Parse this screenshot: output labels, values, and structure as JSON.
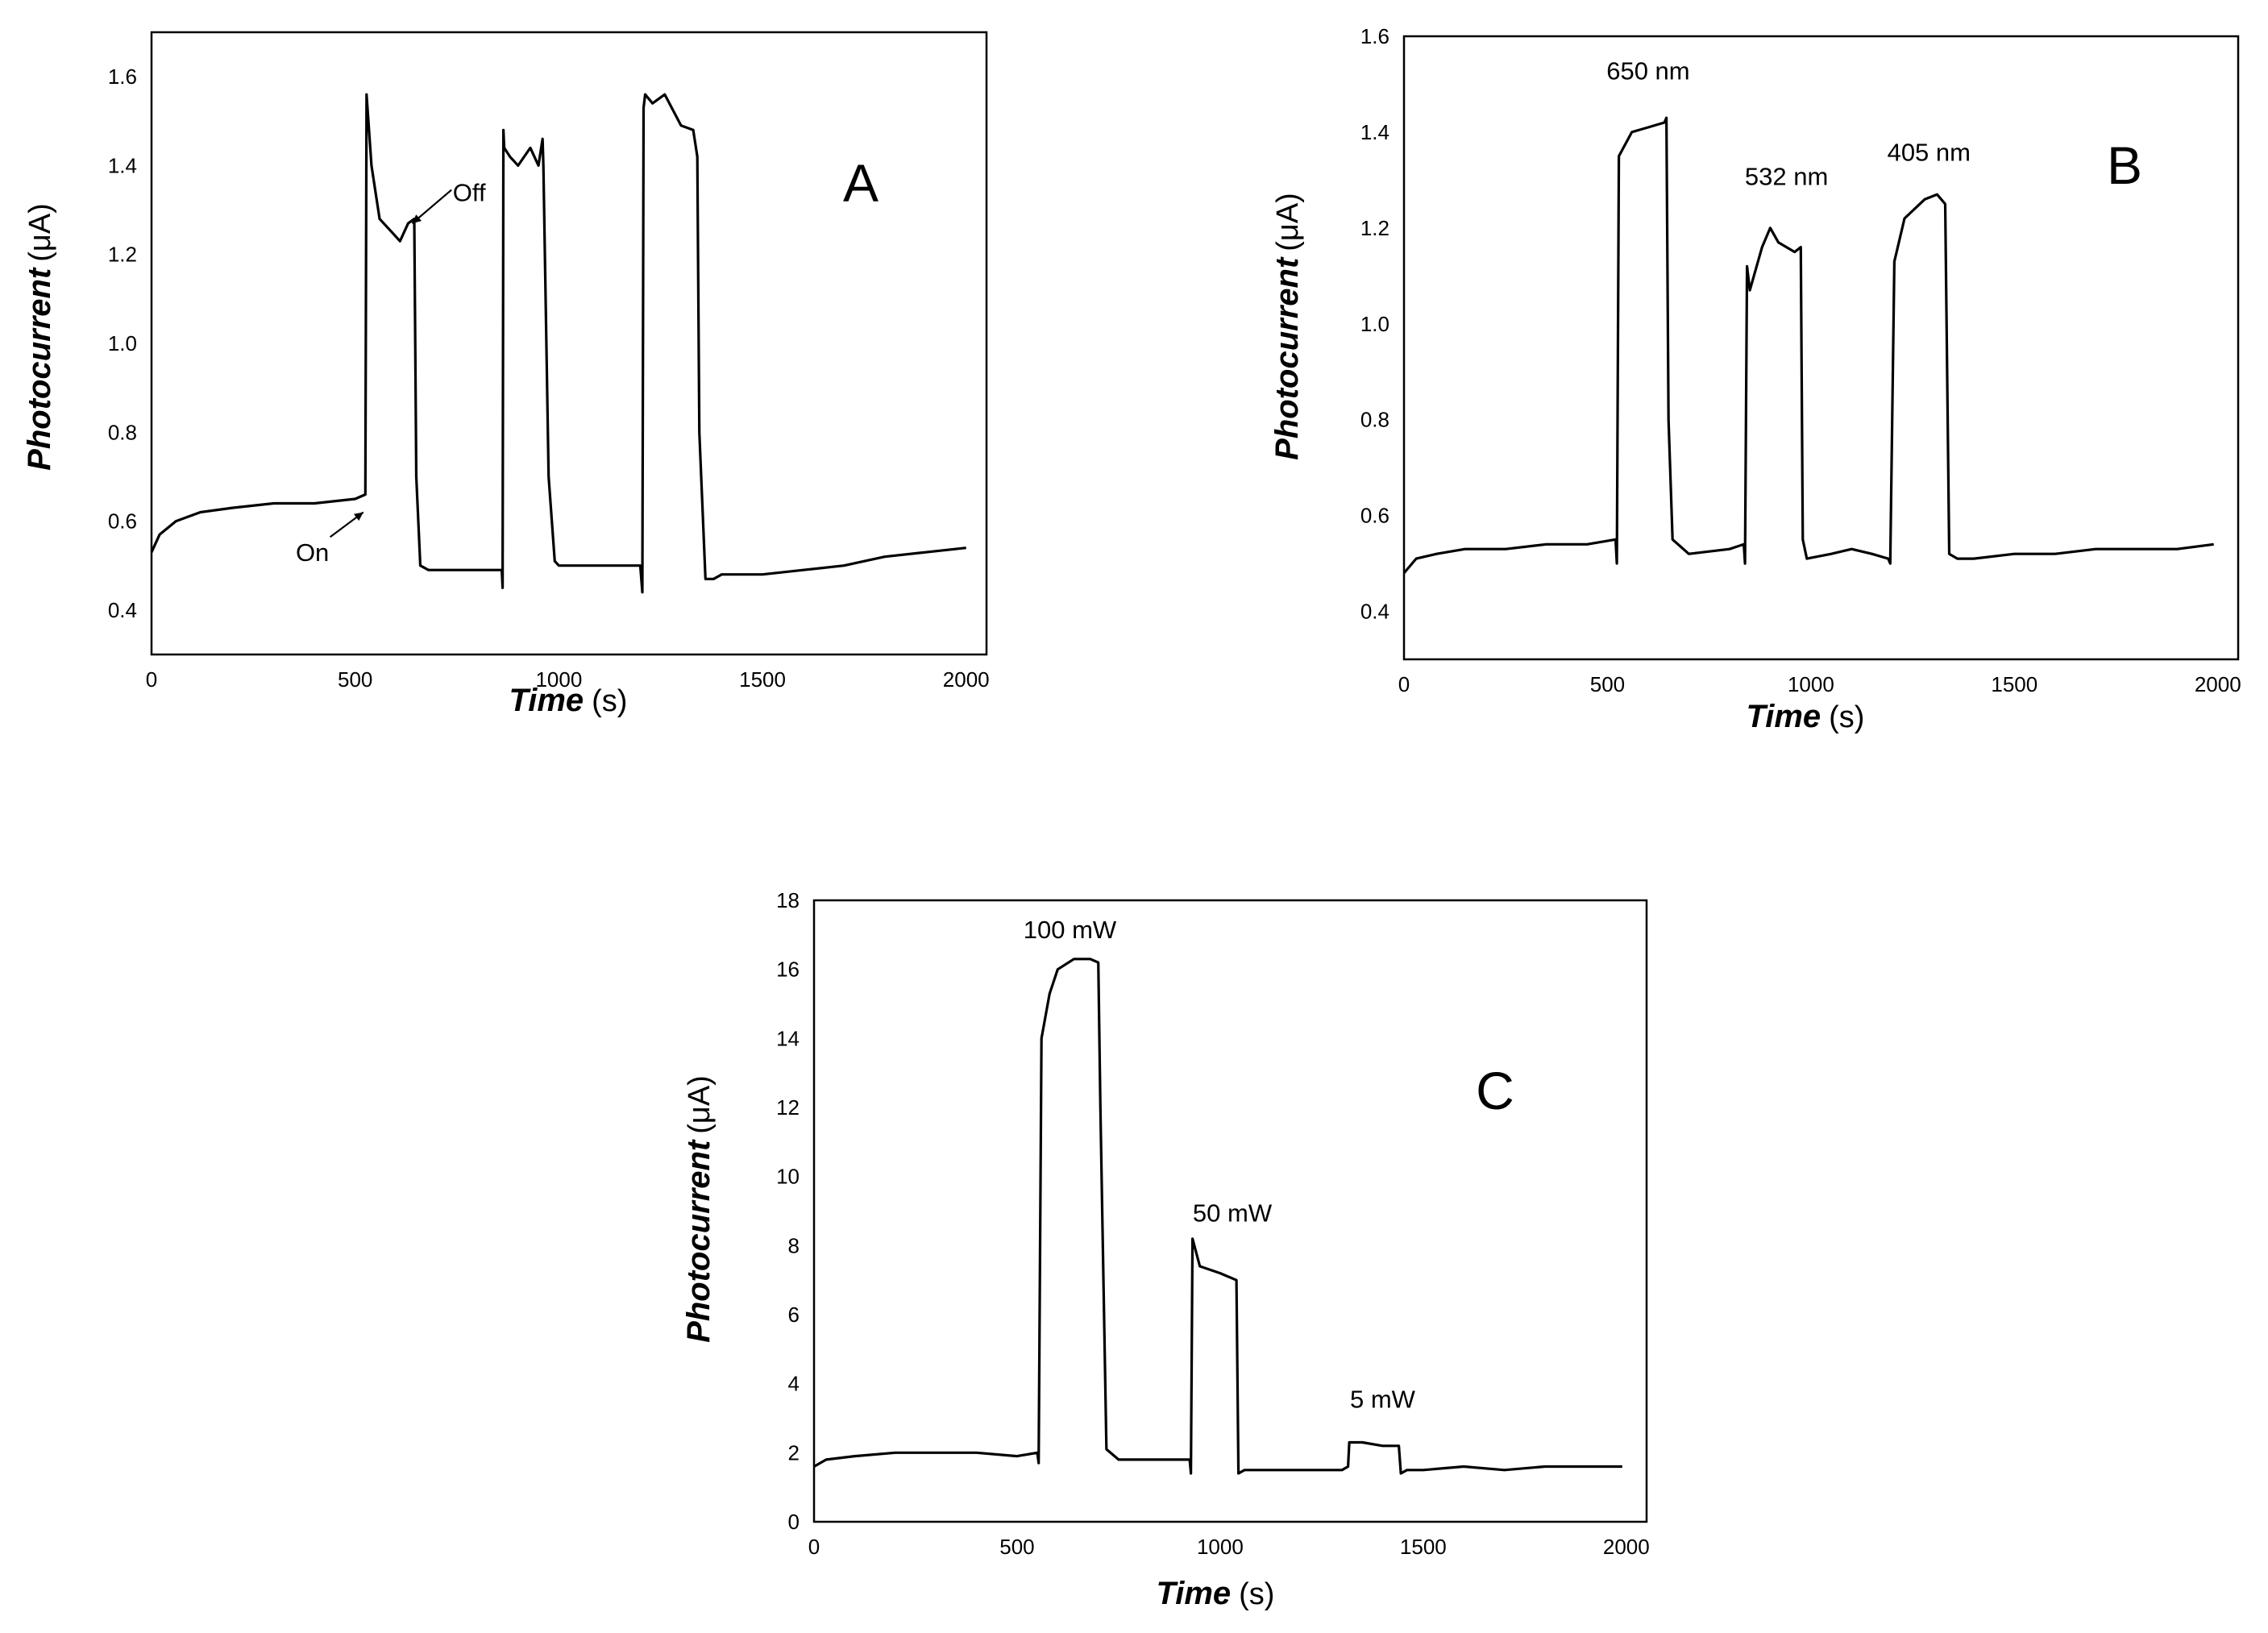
{
  "chart_data": [
    {
      "id": "A",
      "type": "line",
      "panel_label": "A",
      "xlabel": "Time",
      "xunit": "(s)",
      "ylabel": "Photocurrent",
      "yunit": "(μA)",
      "xlim": [
        0,
        2050
      ],
      "ylim": [
        0.3,
        1.7
      ],
      "xticks": [
        0,
        500,
        1000,
        1500,
        2000
      ],
      "yticks": [
        0.4,
        0.6,
        0.8,
        1.0,
        1.2,
        1.4,
        1.6
      ],
      "xtick_labels": [
        "0",
        "500",
        "1000",
        "1500",
        "2000"
      ],
      "ytick_labels": [
        "0.4",
        "0.6",
        "0.8",
        "1.0",
        "1.2",
        "1.4",
        "1.6"
      ],
      "annotations": [
        {
          "text": "On",
          "x": 395,
          "y": 0.51,
          "arrow_to": [
            520,
            0.62
          ]
        },
        {
          "text": "Off",
          "x": 780,
          "y": 1.32,
          "arrow_to": [
            640,
            1.27
          ]
        }
      ],
      "series": [
        {
          "name": "photocurrent",
          "x": [
            0,
            20,
            60,
            120,
            200,
            300,
            400,
            500,
            525,
            528,
            540,
            560,
            590,
            610,
            630,
            645,
            650,
            660,
            680,
            700,
            800,
            860,
            862,
            864,
            866,
            880,
            900,
            930,
            950,
            960,
            962,
            975,
            990,
            1000,
            1100,
            1200,
            1205,
            1208,
            1212,
            1230,
            1260,
            1300,
            1330,
            1340,
            1345,
            1360,
            1380,
            1400,
            1500,
            1600,
            1700,
            1800,
            1900,
            2000
          ],
          "y": [
            0.53,
            0.57,
            0.6,
            0.62,
            0.63,
            0.64,
            0.64,
            0.65,
            0.66,
            1.56,
            1.4,
            1.28,
            1.25,
            1.23,
            1.27,
            1.28,
            0.7,
            0.5,
            0.49,
            0.49,
            0.49,
            0.49,
            0.45,
            1.48,
            1.44,
            1.42,
            1.4,
            1.44,
            1.4,
            1.46,
            1.4,
            0.7,
            0.51,
            0.5,
            0.5,
            0.5,
            0.44,
            1.53,
            1.56,
            1.54,
            1.56,
            1.49,
            1.48,
            1.42,
            0.8,
            0.47,
            0.47,
            0.48,
            0.48,
            0.49,
            0.5,
            0.52,
            0.53,
            0.54
          ]
        }
      ]
    },
    {
      "id": "B",
      "type": "line",
      "panel_label": "B",
      "xlabel": "Time",
      "xunit": "(s)",
      "ylabel": "Photocurrent",
      "yunit": "(μA)",
      "xlim": [
        0,
        2050
      ],
      "ylim": [
        0.3,
        1.6
      ],
      "xticks": [
        0,
        500,
        1000,
        1500,
        2000
      ],
      "yticks": [
        0.4,
        0.6,
        0.8,
        1.0,
        1.2,
        1.4,
        1.6
      ],
      "xtick_labels": [
        "0",
        "500",
        "1000",
        "1500",
        "2000"
      ],
      "ytick_labels": [
        "0.4",
        "0.6",
        "0.8",
        "1.0",
        "1.2",
        "1.4",
        "1.6"
      ],
      "annotations": [
        {
          "text": "650 nm",
          "x": 600,
          "y": 1.51
        },
        {
          "text": "532 nm",
          "x": 940,
          "y": 1.29
        },
        {
          "text": "405 nm",
          "x": 1290,
          "y": 1.34
        }
      ],
      "series": [
        {
          "name": "photocurrent",
          "x": [
            0,
            30,
            80,
            150,
            250,
            350,
            450,
            520,
            523,
            528,
            560,
            600,
            640,
            645,
            650,
            660,
            700,
            800,
            835,
            838,
            843,
            850,
            880,
            900,
            920,
            960,
            975,
            980,
            990,
            1050,
            1100,
            1150,
            1190,
            1195,
            1205,
            1230,
            1280,
            1310,
            1330,
            1340,
            1360,
            1400,
            1500,
            1600,
            1700,
            1800,
            1900,
            1990
          ],
          "y": [
            0.48,
            0.51,
            0.52,
            0.53,
            0.53,
            0.54,
            0.54,
            0.55,
            0.5,
            1.35,
            1.4,
            1.41,
            1.42,
            1.43,
            0.8,
            0.55,
            0.52,
            0.53,
            0.54,
            0.5,
            1.12,
            1.07,
            1.16,
            1.2,
            1.17,
            1.15,
            1.16,
            0.55,
            0.51,
            0.52,
            0.53,
            0.52,
            0.51,
            0.5,
            1.13,
            1.22,
            1.26,
            1.27,
            1.25,
            0.52,
            0.51,
            0.51,
            0.52,
            0.52,
            0.53,
            0.53,
            0.53,
            0.54
          ]
        }
      ]
    },
    {
      "id": "C",
      "type": "line",
      "panel_label": "C",
      "xlabel": "Time",
      "xunit": "(s)",
      "ylabel": "Photocurrent",
      "yunit": "(μA)",
      "xlim": [
        0,
        2050
      ],
      "ylim": [
        0,
        18
      ],
      "xticks": [
        0,
        500,
        1000,
        1500,
        2000
      ],
      "yticks": [
        0,
        2,
        4,
        6,
        8,
        10,
        12,
        14,
        16,
        18
      ],
      "xtick_labels": [
        "0",
        "500",
        "1000",
        "1500",
        "2000"
      ],
      "ytick_labels": [
        "0",
        "2",
        "4",
        "6",
        "8",
        "10",
        "12",
        "14",
        "16",
        "18"
      ],
      "annotations": [
        {
          "text": "100 mW",
          "x": 630,
          "y": 16.9
        },
        {
          "text": "50 mW",
          "x": 1030,
          "y": 8.7
        },
        {
          "text": "5 mW",
          "x": 1400,
          "y": 3.3
        }
      ],
      "series": [
        {
          "name": "photocurrent",
          "x": [
            0,
            30,
            100,
            200,
            300,
            400,
            500,
            550,
            553,
            560,
            580,
            600,
            640,
            680,
            700,
            705,
            720,
            750,
            800,
            900,
            925,
            928,
            932,
            950,
            1000,
            1040,
            1045,
            1060,
            1100,
            1200,
            1300,
            1315,
            1318,
            1350,
            1400,
            1440,
            1445,
            1460,
            1500,
            1600,
            1700,
            1800,
            1900,
            1990
          ],
          "y": [
            1.6,
            1.8,
            1.9,
            2.0,
            2.0,
            2.0,
            1.9,
            2.0,
            1.7,
            14.0,
            15.3,
            16.0,
            16.3,
            16.3,
            16.2,
            12.0,
            2.1,
            1.8,
            1.8,
            1.8,
            1.8,
            1.4,
            8.2,
            7.4,
            7.2,
            7.0,
            1.4,
            1.5,
            1.5,
            1.5,
            1.5,
            1.6,
            2.3,
            2.3,
            2.2,
            2.2,
            1.4,
            1.5,
            1.5,
            1.6,
            1.5,
            1.6,
            1.6,
            1.6
          ]
        }
      ]
    }
  ]
}
